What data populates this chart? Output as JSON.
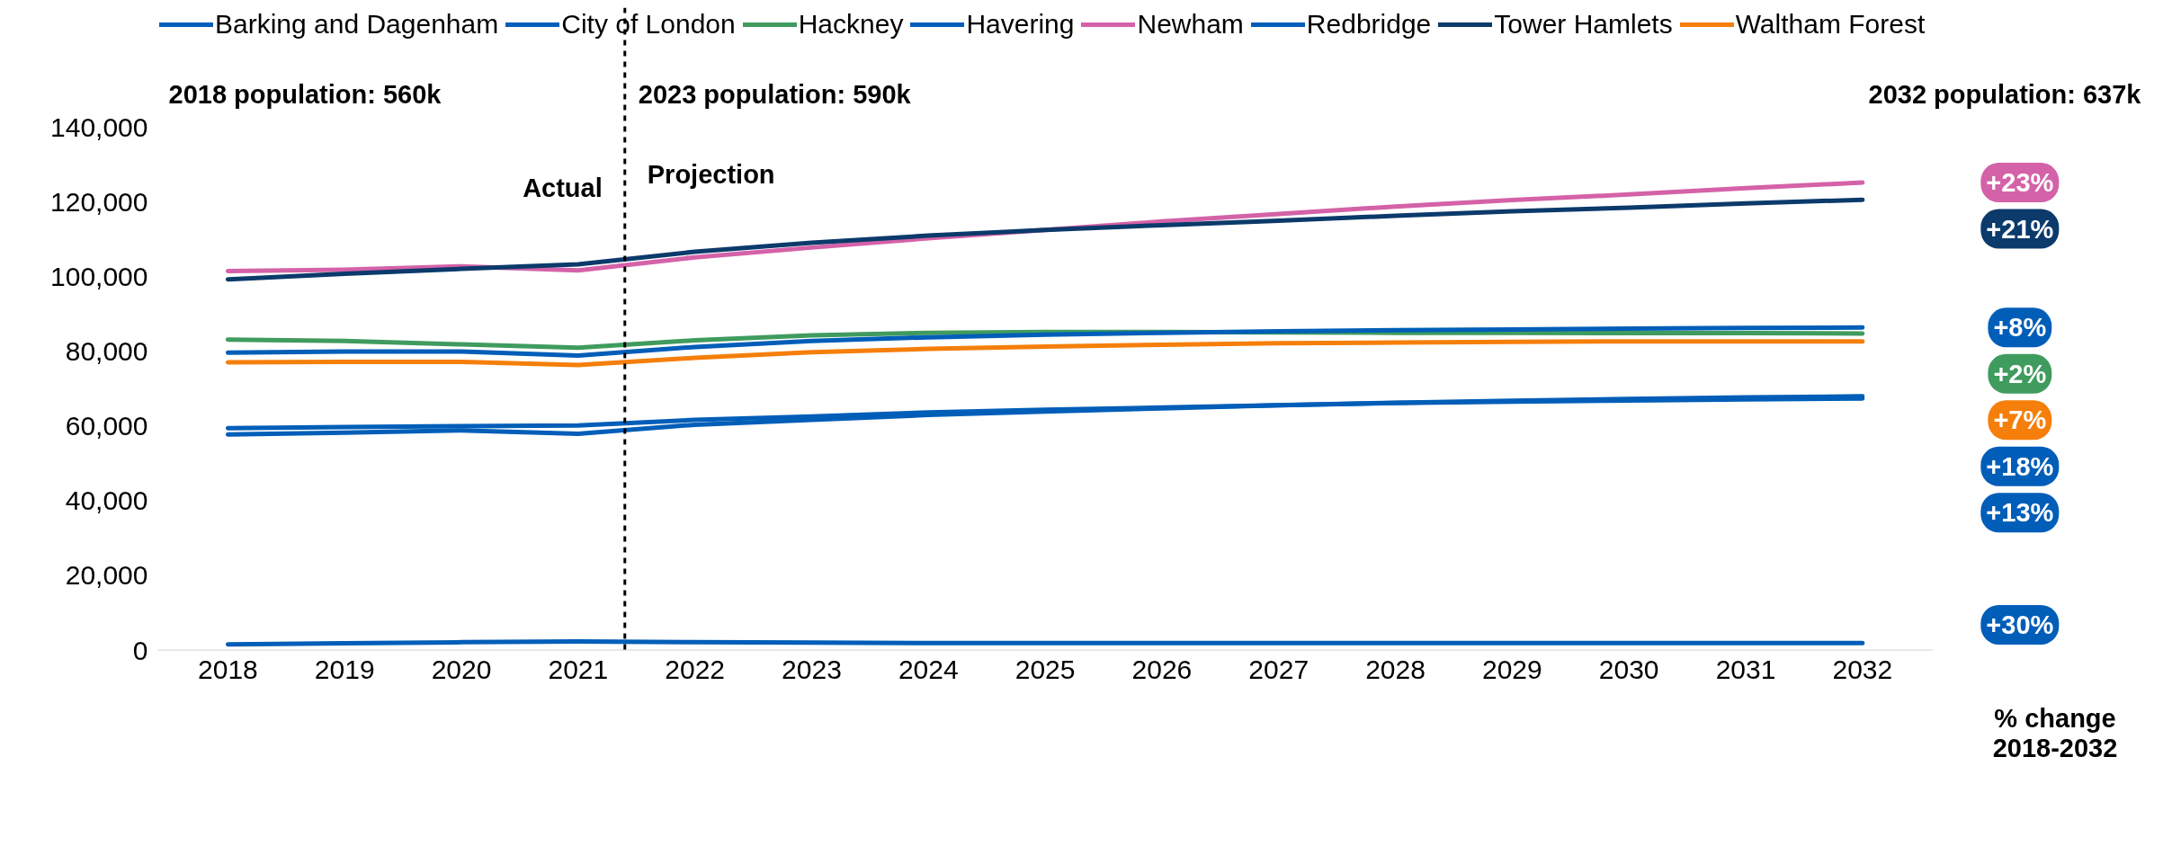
{
  "chart_data": {
    "type": "line",
    "x": [
      2018,
      2019,
      2020,
      2021,
      2022,
      2023,
      2024,
      2025,
      2026,
      2027,
      2028,
      2029,
      2030,
      2031,
      2032
    ],
    "series": [
      {
        "name": "Barking and Dagenham",
        "color": "#005eb8",
        "values": [
          57800,
          58300,
          58900,
          58000,
          60400,
          61700,
          63000,
          63900,
          64800,
          65600,
          66300,
          66800,
          67300,
          67700,
          68000
        ]
      },
      {
        "name": "City of London",
        "color": "#005eb8",
        "values": [
          1600,
          1900,
          2200,
          2400,
          2200,
          2100,
          2000,
          2000,
          2000,
          2000,
          2000,
          2000,
          2000,
          2000,
          2000
        ]
      },
      {
        "name": "Hackney",
        "color": "#3f9b5e",
        "values": [
          83200,
          82800,
          81900,
          81000,
          83000,
          84300,
          85000,
          85200,
          85200,
          85100,
          85000,
          85000,
          84900,
          84900,
          84800
        ]
      },
      {
        "name": "Havering",
        "color": "#005eb8",
        "values": [
          79700,
          80000,
          80000,
          78900,
          81200,
          82800,
          83800,
          84500,
          85000,
          85400,
          85700,
          85900,
          86100,
          86300,
          86400
        ]
      },
      {
        "name": "Newham",
        "color": "#d462a8",
        "values": [
          101500,
          101900,
          102800,
          101700,
          105200,
          107800,
          110300,
          112500,
          114800,
          116800,
          118800,
          120500,
          122000,
          123700,
          125200
        ]
      },
      {
        "name": "Redbridge",
        "color": "#005eb8",
        "values": [
          59500,
          59800,
          60000,
          60200,
          61700,
          62600,
          63700,
          64400,
          65000,
          65600,
          66200,
          66600,
          66900,
          67200,
          67400
        ]
      },
      {
        "name": "Tower Hamlets",
        "color": "#0b3a6b",
        "values": [
          99300,
          100800,
          102100,
          103300,
          106700,
          109100,
          111000,
          112500,
          113800,
          115000,
          116300,
          117500,
          118500,
          119600,
          120600
        ]
      },
      {
        "name": "Waltham Forest",
        "color": "#f57f0a",
        "values": [
          77100,
          77200,
          77200,
          76400,
          78300,
          79800,
          80700,
          81300,
          81800,
          82200,
          82400,
          82600,
          82700,
          82700,
          82700
        ]
      }
    ],
    "xlim": [
      2017.4,
      2032.6
    ],
    "xticks": [
      2018,
      2019,
      2020,
      2021,
      2022,
      2023,
      2024,
      2025,
      2026,
      2027,
      2028,
      2029,
      2030,
      2031,
      2032
    ],
    "ylim": [
      0,
      172000
    ],
    "yticks": [
      {
        "value": 0,
        "label": "0"
      },
      {
        "value": 20000,
        "label": "20,000"
      },
      {
        "value": 40000,
        "label": "40,000"
      },
      {
        "value": 60000,
        "label": "60,000"
      },
      {
        "value": 80000,
        "label": "80,000"
      },
      {
        "value": 100000,
        "label": "100,000"
      },
      {
        "value": 120000,
        "label": "120,000"
      },
      {
        "value": 140000,
        "label": "140,000"
      }
    ],
    "ref_lines": [
      {
        "axis": "x",
        "value": 2021.4,
        "color": "#000000",
        "line_style": "dashed"
      }
    ],
    "annotations": [
      "2018 population: 560k",
      "2023 population: 590k",
      "2032 population: 637k",
      "% change 2018-2032",
      "Actual",
      "Projection",
      "+18%",
      "+30%",
      "+2%",
      "+8%",
      "+23%",
      "+13%",
      "+21%",
      "+7%"
    ],
    "legend": "top",
    "grid": false,
    "marker": "none",
    "line_style": "solid"
  }
}
